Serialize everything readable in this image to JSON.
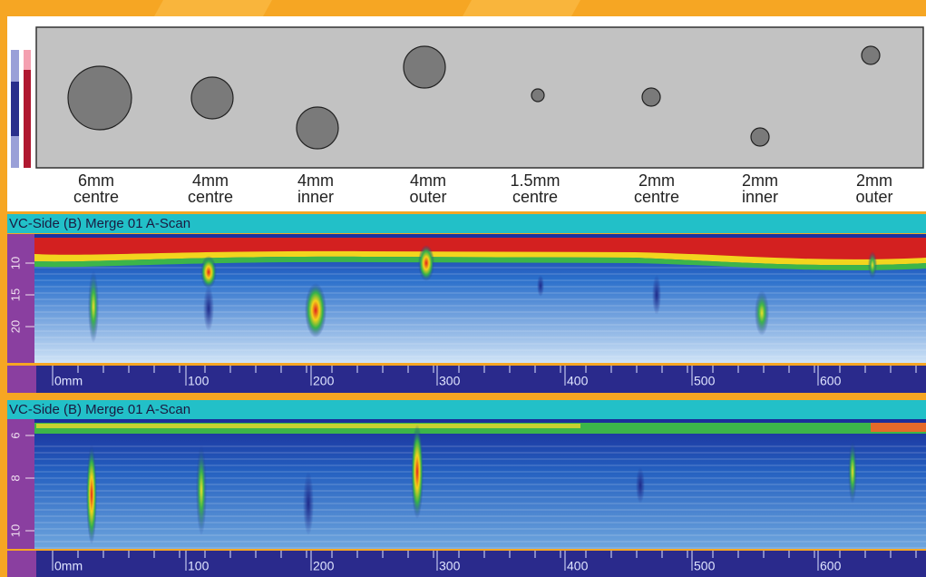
{
  "defects": [
    {
      "size": "6mm",
      "position": "centre"
    },
    {
      "size": "4mm",
      "position": "centre"
    },
    {
      "size": "4mm",
      "position": "inner"
    },
    {
      "size": "4mm",
      "position": "outer"
    },
    {
      "size": "1.5mm",
      "position": "centre"
    },
    {
      "size": "2mm",
      "position": "centre"
    },
    {
      "size": "2mm",
      "position": "inner"
    },
    {
      "size": "2mm",
      "position": "outer"
    }
  ],
  "scans": [
    {
      "title": "VC-Side (B) Merge 01 A-Scan",
      "depth_ticks": [
        "10",
        "15",
        "20"
      ],
      "x_ticks": [
        "0mm",
        "100",
        "200",
        "300",
        "400",
        "500",
        "600"
      ]
    },
    {
      "title": "VC-Side (B) Merge 01 A-Scan",
      "depth_ticks": [
        "6",
        "8",
        "10"
      ],
      "x_ticks": [
        "0mm",
        "100",
        "200",
        "300",
        "400",
        "500",
        "600"
      ]
    }
  ]
}
